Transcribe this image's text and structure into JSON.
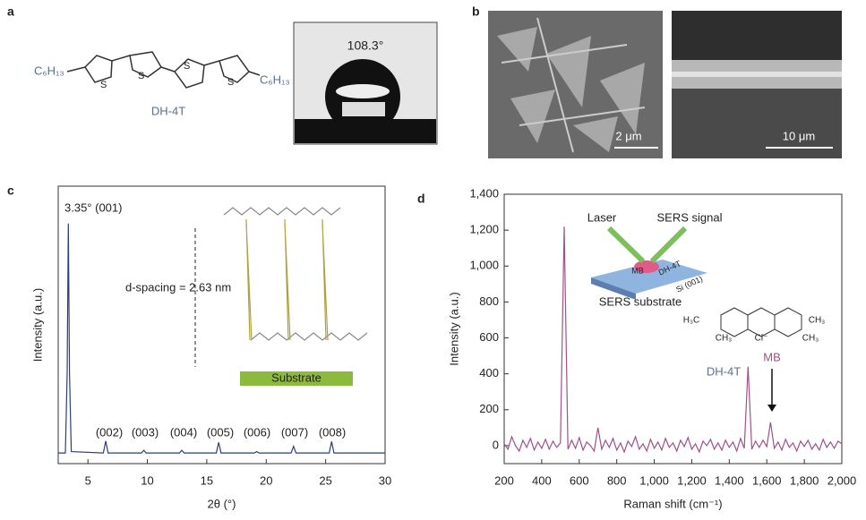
{
  "panels": {
    "a": {
      "label": "a",
      "end_groups": [
        "C₆H₁₃",
        "C₆H₁₃"
      ],
      "ring_atoms": [
        "S",
        "S",
        "S",
        "S"
      ],
      "name": "DH-4T",
      "contact_angle": "108.3°"
    },
    "b": {
      "label": "b",
      "scale_bars": [
        "2 μm",
        "10 μm"
      ]
    }
  },
  "chart_data": [
    {
      "type": "line",
      "panel_label": "c",
      "x_label": "2θ (°)",
      "y_label": "Intensity (a.u.)",
      "color": "#2b3f7a",
      "xlim": [
        2.5,
        30
      ],
      "xticks": [
        5,
        10,
        15,
        20,
        25,
        30
      ],
      "ylim": [
        -4,
        100
      ],
      "x": [
        2.5,
        3.1,
        3.25,
        3.35,
        3.45,
        3.6,
        6.3,
        6.5,
        6.7,
        9.5,
        9.7,
        9.9,
        12.7,
        12.9,
        13.1,
        15.8,
        16.0,
        16.2,
        19.0,
        19.2,
        19.4,
        22.1,
        22.3,
        22.5,
        25.3,
        25.5,
        25.7,
        30
      ],
      "values": [
        0,
        0,
        30,
        86,
        30,
        0.5,
        0,
        4.5,
        0,
        0,
        1,
        0,
        0,
        1,
        0,
        0,
        4,
        0,
        0,
        0.5,
        0,
        0,
        2.5,
        0,
        0,
        4.3,
        0,
        0
      ],
      "peak_labels": [
        "3.35° (001)",
        "(002)",
        "(003)",
        "(004)",
        "(005)",
        "(006)",
        "(007)",
        "(008)"
      ],
      "inset": {
        "spacing": "d-spacing = 2.63 nm",
        "substrate": "Substrate"
      }
    },
    {
      "type": "line",
      "panel_label": "d",
      "x_label": "Raman shift (cm⁻¹)",
      "y_label": "Intensity (a.u.)",
      "color": "#a0508a",
      "xlim": [
        200,
        2000
      ],
      "xticks": [
        200,
        400,
        600,
        800,
        {
          "value": 1000,
          "label": "1,000"
        },
        {
          "value": 1200,
          "label": "1,200"
        },
        {
          "value": 1400,
          "label": "1,400"
        },
        {
          "value": 1600,
          "label": "1,600"
        },
        {
          "value": 1800,
          "label": "1,800"
        },
        {
          "value": 2000,
          "label": "2,000"
        }
      ],
      "ylim": [
        -100,
        1400
      ],
      "yticks": [
        0,
        200,
        400,
        600,
        800,
        {
          "value": 1000,
          "label": "1,000"
        },
        {
          "value": 1200,
          "label": "1,200"
        },
        {
          "value": 1400,
          "label": "1,400"
        }
      ],
      "x": [
        200,
        220,
        240,
        260,
        280,
        300,
        320,
        340,
        360,
        380,
        400,
        420,
        440,
        460,
        480,
        500,
        520,
        540,
        560,
        580,
        600,
        620,
        640,
        660,
        680,
        700,
        720,
        740,
        760,
        780,
        800,
        820,
        840,
        860,
        880,
        900,
        920,
        940,
        960,
        980,
        1000,
        1020,
        1040,
        1060,
        1080,
        1100,
        1120,
        1140,
        1160,
        1180,
        1200,
        1220,
        1240,
        1260,
        1280,
        1300,
        1320,
        1340,
        1360,
        1380,
        1400,
        1420,
        1440,
        1460,
        1480,
        1500,
        1520,
        1540,
        1560,
        1580,
        1600,
        1620,
        1640,
        1660,
        1680,
        1700,
        1720,
        1740,
        1760,
        1780,
        1800,
        1820,
        1840,
        1860,
        1880,
        1900,
        1920,
        1940,
        1960,
        1980,
        2000
      ],
      "values": [
        10,
        -20,
        50,
        0,
        -30,
        30,
        -10,
        40,
        -25,
        20,
        -15,
        35,
        -20,
        25,
        -10,
        15,
        1220,
        -20,
        30,
        -15,
        45,
        -25,
        20,
        0,
        -30,
        100,
        -20,
        30,
        -10,
        40,
        -25,
        15,
        -35,
        25,
        -5,
        50,
        -20,
        10,
        -30,
        35,
        -15,
        20,
        -25,
        40,
        -10,
        15,
        -30,
        30,
        -5,
        45,
        -20,
        10,
        -35,
        25,
        0,
        35,
        -20,
        15,
        -25,
        30,
        -10,
        20,
        -30,
        40,
        -15,
        440,
        -20,
        25,
        -10,
        30,
        -5,
        130,
        -15,
        20,
        -25,
        35,
        -10,
        15,
        -30,
        25,
        -5,
        30,
        -20,
        10,
        -25,
        35,
        -10,
        20,
        -15,
        25,
        10
      ],
      "peak_labels": [
        "DH-4T",
        "MB"
      ],
      "inset": {
        "laser": "Laser",
        "signal": "SERS signal",
        "substrate": "SERS substrate",
        "layers": [
          "MB",
          "DH-4T",
          "Si (001)"
        ]
      },
      "mb_structure": [
        "H₃C",
        "CH₃",
        "CH₃",
        "CH₃",
        "Cl⁻"
      ]
    }
  ]
}
